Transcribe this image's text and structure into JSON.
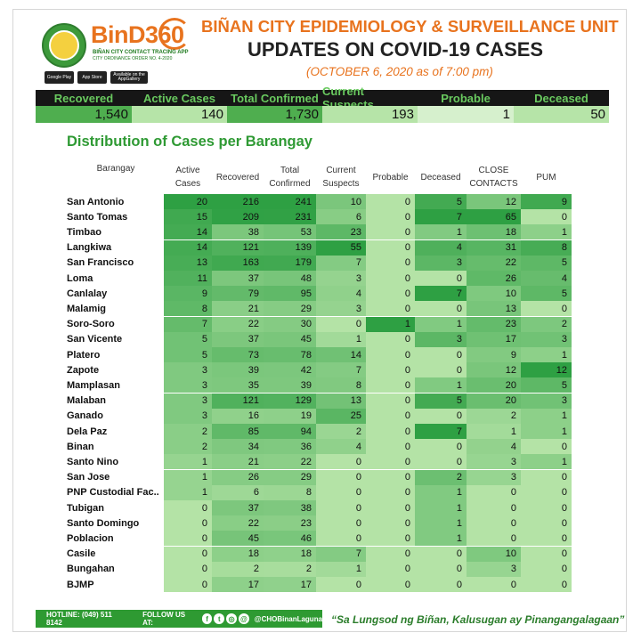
{
  "header": {
    "brand": "BinD360",
    "brand_sub1": "BIÑAN CITY CONTACT TRACING APP",
    "brand_sub2": "CITY ORDINANCE ORDER NO. 4-2020",
    "store_badges": [
      "Google Play",
      "App Store",
      "Available on the",
      "AppGallery"
    ],
    "title_line1": "BIÑAN CITY EPIDEMIOLOGY & SURVEILLANCE UNIT",
    "title_line2": "UPDATES ON COVID-19 CASES",
    "date": "(OCTOBER 6, 2020 as of 7:00 pm)"
  },
  "summary": [
    {
      "label": "Recovered",
      "value": "1,540"
    },
    {
      "label": "Active Cases",
      "value": "140"
    },
    {
      "label": "Total Confirmed",
      "value": "1,730"
    },
    {
      "label": "Current Suspects",
      "value": "193"
    },
    {
      "label": "Probable",
      "value": "1"
    },
    {
      "label": "Deceased",
      "value": "50"
    }
  ],
  "chart_data": {
    "type": "table",
    "title": "Distribution of Cases per Barangay",
    "columns": [
      "Barangay",
      "Active Cases",
      "Recovered",
      "Total Confirmed",
      "Current Suspects",
      "Probable",
      "Deceased",
      "CLOSE CONTACTS",
      "PUM"
    ],
    "rows": [
      [
        "San Antonio",
        20,
        216,
        241,
        10,
        0,
        5,
        12,
        9
      ],
      [
        "Santo Tomas",
        15,
        209,
        231,
        6,
        0,
        7,
        65,
        0
      ],
      [
        "Timbao",
        14,
        38,
        53,
        23,
        0,
        1,
        18,
        1
      ],
      [
        "Langkiwa",
        14,
        121,
        139,
        55,
        0,
        4,
        31,
        8
      ],
      [
        "San Francisco",
        13,
        163,
        179,
        7,
        0,
        3,
        22,
        5
      ],
      [
        "Loma",
        11,
        37,
        48,
        3,
        0,
        0,
        26,
        4
      ],
      [
        "Canlalay",
        9,
        79,
        95,
        4,
        0,
        7,
        10,
        5
      ],
      [
        "Malamig",
        8,
        21,
        29,
        3,
        0,
        0,
        13,
        0
      ],
      [
        "Soro-Soro",
        7,
        22,
        30,
        0,
        1,
        1,
        23,
        2
      ],
      [
        "San Vicente",
        5,
        37,
        45,
        1,
        0,
        3,
        17,
        3
      ],
      [
        "Platero",
        5,
        73,
        78,
        14,
        0,
        0,
        9,
        1
      ],
      [
        "Zapote",
        3,
        39,
        42,
        7,
        0,
        0,
        12,
        12
      ],
      [
        "Mamplasan",
        3,
        35,
        39,
        8,
        0,
        1,
        20,
        5
      ],
      [
        "Malaban",
        3,
        121,
        129,
        13,
        0,
        5,
        20,
        3
      ],
      [
        "Ganado",
        3,
        16,
        19,
        25,
        0,
        0,
        2,
        1
      ],
      [
        "Dela Paz",
        2,
        85,
        94,
        2,
        0,
        7,
        1,
        1
      ],
      [
        "Binan",
        2,
        34,
        36,
        4,
        0,
        0,
        4,
        0
      ],
      [
        "Santo Nino",
        1,
        21,
        22,
        0,
        0,
        0,
        3,
        1
      ],
      [
        "San Jose",
        1,
        26,
        29,
        0,
        0,
        2,
        3,
        0
      ],
      [
        "PNP Custodial Fac..",
        1,
        6,
        8,
        0,
        0,
        1,
        0,
        0
      ],
      [
        "Tubigan",
        0,
        37,
        38,
        0,
        0,
        1,
        0,
        0
      ],
      [
        "Santo Domingo",
        0,
        22,
        23,
        0,
        0,
        1,
        0,
        0
      ],
      [
        "Poblacion",
        0,
        45,
        46,
        0,
        0,
        1,
        0,
        0
      ],
      [
        "Casile",
        0,
        18,
        18,
        7,
        0,
        0,
        10,
        0
      ],
      [
        "Bungahan",
        0,
        2,
        2,
        1,
        0,
        0,
        3,
        0
      ],
      [
        "BJMP",
        0,
        17,
        17,
        0,
        0,
        0,
        0,
        0
      ]
    ]
  },
  "footer": {
    "hotline": "HOTLINE: (049) 511 8142",
    "follow": "FOLLOW US AT:",
    "handle": "@CHOBinanLaguna",
    "slogan": "“Sa Lungsod ng Biñan, Kalusugan ay Pinangangalagaan”"
  },
  "colors": {
    "accent_orange": "#e8731e",
    "accent_green": "#2f9a34",
    "header_text_green": "#69c95f",
    "heat_low": "#b4e3a6",
    "heat_high": "#2ea043"
  }
}
